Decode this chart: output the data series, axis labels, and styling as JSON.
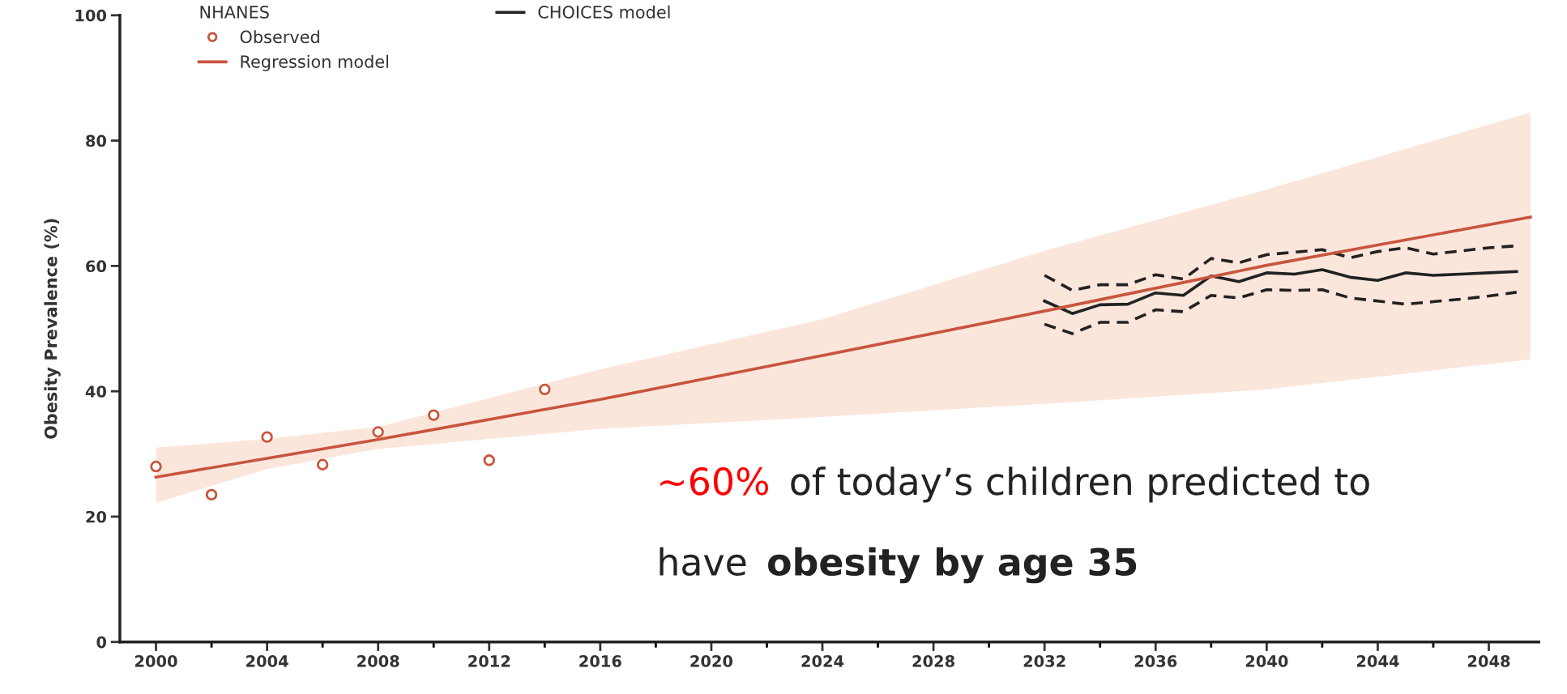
{
  "chart_data": {
    "type": "line",
    "ylabel": "Obesity Prevalence (%)",
    "legend_title": "NHANES",
    "legend": "top left",
    "xlim": [
      1998.7,
      2049.8
    ],
    "ylim": [
      0,
      100
    ],
    "xticks": [
      2000,
      2004,
      2008,
      2012,
      2016,
      2020,
      2024,
      2028,
      2032,
      2036,
      2040,
      2044,
      2048
    ],
    "yticks": [
      0,
      20,
      40,
      60,
      80,
      100
    ],
    "grid": false,
    "series": [
      {
        "name": "Observed",
        "type": "scatter",
        "marker": "circle",
        "color": "#c8553d",
        "x": [
          2000,
          2002,
          2004,
          2006,
          2008,
          2010,
          2012,
          2014
        ],
        "values": [
          28,
          23.5,
          32.7,
          28.3,
          33.5,
          36.2,
          29,
          40.3
        ]
      },
      {
        "name": "Regression model",
        "color": "#c8553d",
        "x": [
          2000,
          2004,
          2008,
          2016,
          2024,
          2032,
          2040,
          2049.5
        ],
        "values": [
          26.3,
          29.3,
          32.3,
          38.7,
          45.7,
          52.8,
          60.1,
          67.8
        ],
        "lower": [
          22.2,
          27.6,
          30.8,
          34,
          35.9,
          38,
          40.3,
          45.1
        ],
        "upper": [
          31,
          32.4,
          34.3,
          43.5,
          51.5,
          62.4,
          72.2,
          84.5
        ]
      },
      {
        "name": "CHOICES model",
        "color": "#222222",
        "line_style": "solid",
        "x": [
          2032,
          2033,
          2034,
          2035,
          2036,
          2037,
          2038,
          2039,
          2040,
          2041,
          2042,
          2043,
          2044,
          2045,
          2046,
          2047,
          2048,
          2049
        ],
        "values": [
          54.4,
          52.4,
          53.8,
          53.9,
          55.7,
          55.3,
          58.4,
          57.5,
          58.9,
          58.7,
          59.4,
          58.2,
          57.7,
          58.9,
          58.5,
          58.7,
          58.9,
          59.1
        ]
      },
      {
        "color": "#222222",
        "line_style": "dashed",
        "x": [
          2032,
          2033,
          2034,
          2035,
          2036,
          2037,
          2038,
          2039,
          2040,
          2041,
          2042,
          2043,
          2044,
          2045,
          2046,
          2047,
          2048,
          2049
        ],
        "values": [
          58.5,
          56.1,
          57.0,
          57.0,
          58.6,
          57.9,
          61.2,
          60.5,
          61.8,
          62.2,
          62.6,
          61.3,
          62.3,
          62.9,
          61.9,
          62.4,
          62.9,
          63.2
        ]
      },
      {
        "color": "#222222",
        "line_style": "dashed",
        "x": [
          2032,
          2033,
          2034,
          2035,
          2036,
          2037,
          2038,
          2039,
          2040,
          2041,
          2042,
          2043,
          2044,
          2045,
          2046,
          2047,
          2048,
          2049
        ],
        "values": [
          50.7,
          49.2,
          51.0,
          51.0,
          53.0,
          52.7,
          55.3,
          54.9,
          56.2,
          56.1,
          56.2,
          54.9,
          54.4,
          53.9,
          54.3,
          54.7,
          55.2,
          55.8
        ]
      }
    ],
    "annotations": [
      "~60%",
      "of today’s children predicted to",
      "have",
      "obesity by age 35"
    ]
  }
}
